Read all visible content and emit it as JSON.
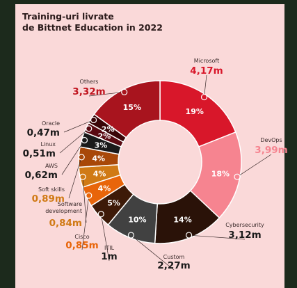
{
  "title_line1": "Training-uri livrate",
  "title_line2": "de Bittnet Education in 2022",
  "chart_data": {
    "type": "pie",
    "variant": "donut",
    "title": "Training-uri livrate de Bittnet Education in 2022",
    "categories": [
      "Microsoft",
      "DevOps",
      "Cybersecurity",
      "Custom",
      "ITIL",
      "Cisco",
      "Software development",
      "Soft skills",
      "AWS",
      "Linux",
      "Oracle",
      "Others"
    ],
    "values": [
      19,
      18,
      14,
      10,
      5,
      4,
      4,
      4,
      3,
      2,
      2,
      15
    ],
    "value_labels": [
      "4,17m",
      "3,99m",
      "3,12m",
      "2,27m",
      "1m",
      "0,85m",
      "0,84m",
      "0,89m",
      "0,62m",
      "0,51m",
      "0,47m",
      "3,32m"
    ],
    "percent_labels": [
      "19%",
      "18%",
      "14%",
      "10%",
      "5%",
      "4%",
      "4%",
      "4%",
      "3%",
      "2%",
      "2%",
      "15%"
    ],
    "name_lines": [
      [
        "Microsoft"
      ],
      [
        "DevOps"
      ],
      [
        "Cybersecurity"
      ],
      [
        "Custom"
      ],
      [
        "ITIL"
      ],
      [
        "Cisco"
      ],
      [
        "Software",
        "development"
      ],
      [
        "Soft skills"
      ],
      [
        "AWS"
      ],
      [
        "Linux"
      ],
      [
        "Oracle"
      ],
      [
        "Others"
      ]
    ],
    "colors": [
      "#d8172a",
      "#f68490",
      "#2a1208",
      "#414141",
      "#3d1a08",
      "#e8650a",
      "#d07a15",
      "#a84808",
      "#1a1a1a",
      "#5a0a12",
      "#3a0508",
      "#a8141e"
    ],
    "value_colors": [
      "#d8172a",
      "#f68490",
      "#1a1a1a",
      "#1a1a1a",
      "#1a1a1a",
      "#e8650a",
      "#d07a15",
      "#d07a15",
      "#1a1a1a",
      "#1a1a1a",
      "#1a1a1a",
      "#c0141e"
    ]
  }
}
